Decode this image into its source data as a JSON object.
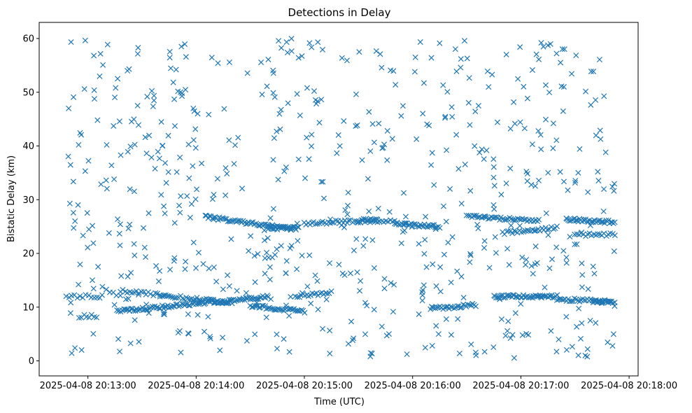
{
  "chart_data": {
    "type": "scatter",
    "title": "Detections in Delay",
    "xlabel": "Time (UTC)",
    "ylabel": "Bistatic Delay (km)",
    "x_ticks": [
      "2025-04-08 20:13:00",
      "2025-04-08 20:14:00",
      "2025-04-08 20:15:00",
      "2025-04-08 20:16:00",
      "2025-04-08 20:17:00",
      "2025-04-08 20:18:00"
    ],
    "y_ticks": [
      0,
      10,
      20,
      30,
      40,
      50,
      60
    ],
    "xlim": [
      "2025-04-08 20:12:33",
      "2025-04-08 20:18:05"
    ],
    "ylim": [
      -2.8,
      63
    ],
    "grid": false,
    "marker": "x",
    "color": "#1f77b4",
    "series": [
      {
        "name": "",
        "tracks": [
          {
            "x_start": "2025-04-08 20:12:48",
            "x_end": "2025-04-08 20:13:08",
            "y_start": 12.0,
            "y_end": 12.0,
            "count": 14
          },
          {
            "x_start": "2025-04-08 20:12:55",
            "x_end": "2025-04-08 20:13:05",
            "y_start": 8.3,
            "y_end": 8.3,
            "count": 8
          },
          {
            "x_start": "2025-04-08 20:13:08",
            "x_end": "2025-04-08 20:13:18",
            "y_start": 13.6,
            "y_end": 12.0,
            "count": 6
          },
          {
            "x_start": "2025-04-08 20:13:16",
            "x_end": "2025-04-08 20:14:10",
            "y_start": 9.2,
            "y_end": 11.0,
            "count": 70
          },
          {
            "x_start": "2025-04-08 20:13:18",
            "x_end": "2025-04-08 20:13:40",
            "y_start": 13.0,
            "y_end": 12.3,
            "count": 18
          },
          {
            "x_start": "2025-04-08 20:13:40",
            "x_end": "2025-04-08 20:14:20",
            "y_start": 12.2,
            "y_end": 10.8,
            "count": 40
          },
          {
            "x_start": "2025-04-08 20:14:05",
            "x_end": "2025-04-08 20:14:55",
            "y_start": 26.8,
            "y_end": 24.5,
            "count": 65
          },
          {
            "x_start": "2025-04-08 20:14:10",
            "x_end": "2025-04-08 20:14:40",
            "y_start": 10.8,
            "y_end": 12.0,
            "count": 40
          },
          {
            "x_start": "2025-04-08 20:14:30",
            "x_end": "2025-04-08 20:15:00",
            "y_start": 10.2,
            "y_end": 9.2,
            "count": 38
          },
          {
            "x_start": "2025-04-08 20:14:40",
            "x_end": "2025-04-08 20:14:57",
            "y_start": 24.7,
            "y_end": 24.7,
            "count": 22
          },
          {
            "x_start": "2025-04-08 20:14:55",
            "x_end": "2025-04-08 20:15:15",
            "y_start": 12.0,
            "y_end": 12.7,
            "count": 20
          },
          {
            "x_start": "2025-04-08 20:15:00",
            "x_end": "2025-04-08 20:15:40",
            "y_start": 25.5,
            "y_end": 26.3,
            "count": 40
          },
          {
            "x_start": "2025-04-08 20:15:30",
            "x_end": "2025-04-08 20:15:50",
            "y_start": 26.0,
            "y_end": 26.0,
            "count": 18
          },
          {
            "x_start": "2025-04-08 20:15:50",
            "x_end": "2025-04-08 20:16:15",
            "y_start": 25.5,
            "y_end": 25.0,
            "count": 34
          },
          {
            "x_start": "2025-04-08 20:16:10",
            "x_end": "2025-04-08 20:16:35",
            "y_start": 9.7,
            "y_end": 10.4,
            "count": 30
          },
          {
            "x_start": "2025-04-08 20:16:30",
            "x_end": "2025-04-08 20:17:10",
            "y_start": 27.0,
            "y_end": 26.0,
            "count": 45
          },
          {
            "x_start": "2025-04-08 20:16:45",
            "x_end": "2025-04-08 20:17:20",
            "y_start": 12.0,
            "y_end": 12.0,
            "count": 50
          },
          {
            "x_start": "2025-04-08 20:16:50",
            "x_end": "2025-04-08 20:17:20",
            "y_start": 23.8,
            "y_end": 24.8,
            "count": 30
          },
          {
            "x_start": "2025-04-08 20:17:20",
            "x_end": "2025-04-08 20:17:50",
            "y_start": 11.5,
            "y_end": 11.0,
            "count": 35
          },
          {
            "x_start": "2025-04-08 20:17:25",
            "x_end": "2025-04-08 20:17:52",
            "y_start": 26.3,
            "y_end": 25.8,
            "count": 40
          },
          {
            "x_start": "2025-04-08 20:17:30",
            "x_end": "2025-04-08 20:17:52",
            "y_start": 23.5,
            "y_end": 23.5,
            "count": 20
          },
          {
            "x_start": "2025-04-08 20:17:40",
            "x_end": "2025-04-08 20:17:52",
            "y_start": 11.0,
            "y_end": 11.0,
            "count": 14
          }
        ],
        "scatter": {
          "x_start": "2025-04-08 20:12:48",
          "x_end": "2025-04-08 20:17:52",
          "y_min": 0.5,
          "y_max": 60,
          "count": 640
        }
      }
    ]
  }
}
